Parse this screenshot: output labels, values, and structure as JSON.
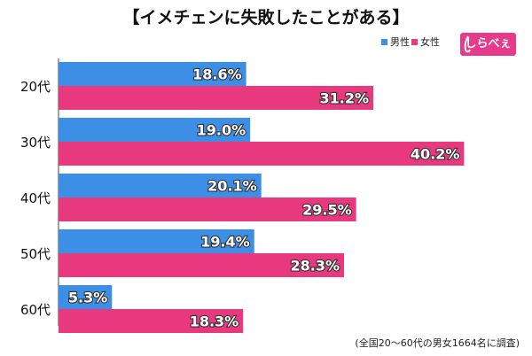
{
  "chart_data": {
    "type": "bar",
    "orientation": "horizontal",
    "title": "【イメチェンに失敗したことがある】",
    "categories": [
      "20代",
      "30代",
      "40代",
      "50代",
      "60代"
    ],
    "series": [
      {
        "name": "男性",
        "values": [
          18.6,
          19.0,
          20.1,
          19.4,
          5.3
        ],
        "color": "#3d8fe6",
        "labels": [
          "18.6%",
          "19.0%",
          "20.1%",
          "19.4%",
          "5.3%"
        ]
      },
      {
        "name": "女性",
        "values": [
          31.2,
          40.2,
          29.5,
          28.3,
          18.3
        ],
        "color": "#e8397f",
        "labels": [
          "31.2%",
          "40.2%",
          "29.5%",
          "28.3%",
          "18.3%"
        ]
      }
    ],
    "xlim": [
      0,
      45
    ],
    "grid": false,
    "legend": "top-right",
    "note": "(全国20～60代の男女1664名に調査)"
  },
  "logo": {
    "text": "しらべぇ"
  }
}
